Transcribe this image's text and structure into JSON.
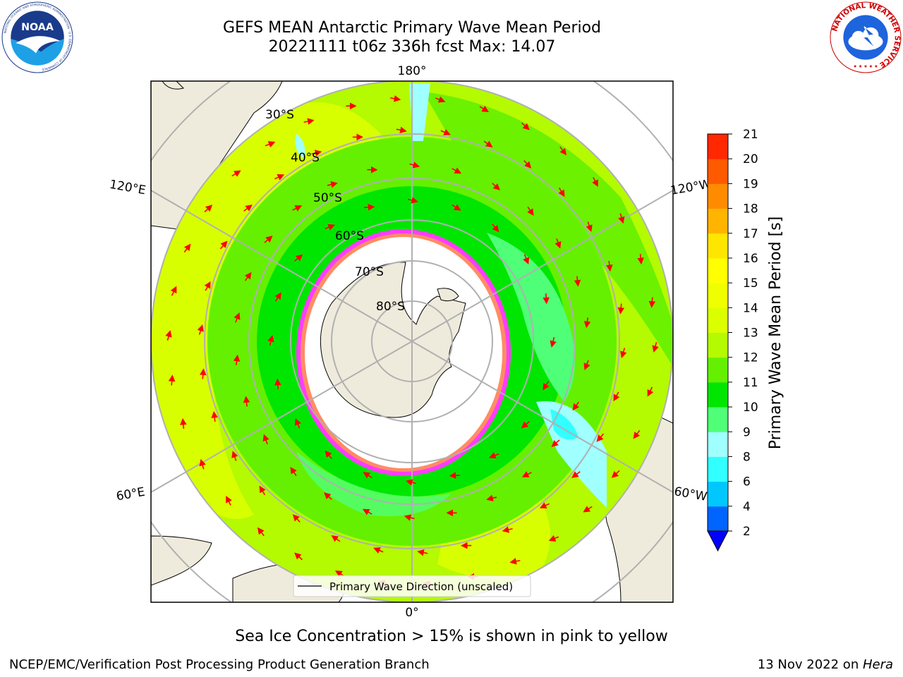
{
  "header": {
    "title_line1": "GEFS MEAN Antarctic Primary Wave Mean Period",
    "title_line2": "20221111 t06z 336h fcst   Max: 14.07"
  },
  "logos": {
    "left": {
      "text": "NOAA",
      "ring_text": "NATIONAL OCEANIC AND ATMOSPHERIC ADMINISTRATION · U.S. DEPARTMENT OF COMMERCE"
    },
    "right": {
      "ring_text": "NATIONAL WEATHER SERVICE"
    }
  },
  "map": {
    "projection": "south-polar-stereographic",
    "longitude_labels": [
      "180°",
      "120°E",
      "120°W",
      "60°E",
      "60°W",
      "0°"
    ],
    "latitude_labels": [
      "30°S",
      "40°S",
      "50°S",
      "60°S",
      "70°S",
      "80°S"
    ],
    "legend_label": "Primary Wave Direction (unscaled)",
    "arrow_color": "#ff0000",
    "ice_colors": [
      "#ff3cff",
      "#ff8c64",
      "#ffc832"
    ]
  },
  "colorbar": {
    "label": "Primary Wave Mean Period [s]",
    "ticks": [
      "2",
      "4",
      "6",
      "8",
      "9",
      "10",
      "11",
      "12",
      "13",
      "14",
      "15",
      "16",
      "17",
      "18",
      "19",
      "20",
      "21"
    ],
    "colors": [
      "#0064ff",
      "#00c8ff",
      "#32ffff",
      "#a0ffff",
      "#50ff78",
      "#00e600",
      "#64f000",
      "#b4fa00",
      "#dcff00",
      "#f0ff00",
      "#ffff00",
      "#ffe600",
      "#ffb400",
      "#ff8c00",
      "#ff5a00",
      "#ff2800"
    ],
    "under_color": "#0000ff"
  },
  "caption": "Sea Ice Concentration > 15% is shown in pink to yellow",
  "footer": {
    "left": "NCEP/EMC/Verification Post Processing Product Generation Branch",
    "right_prefix": "13 Nov 2022 on ",
    "right_host": "Hera"
  }
}
